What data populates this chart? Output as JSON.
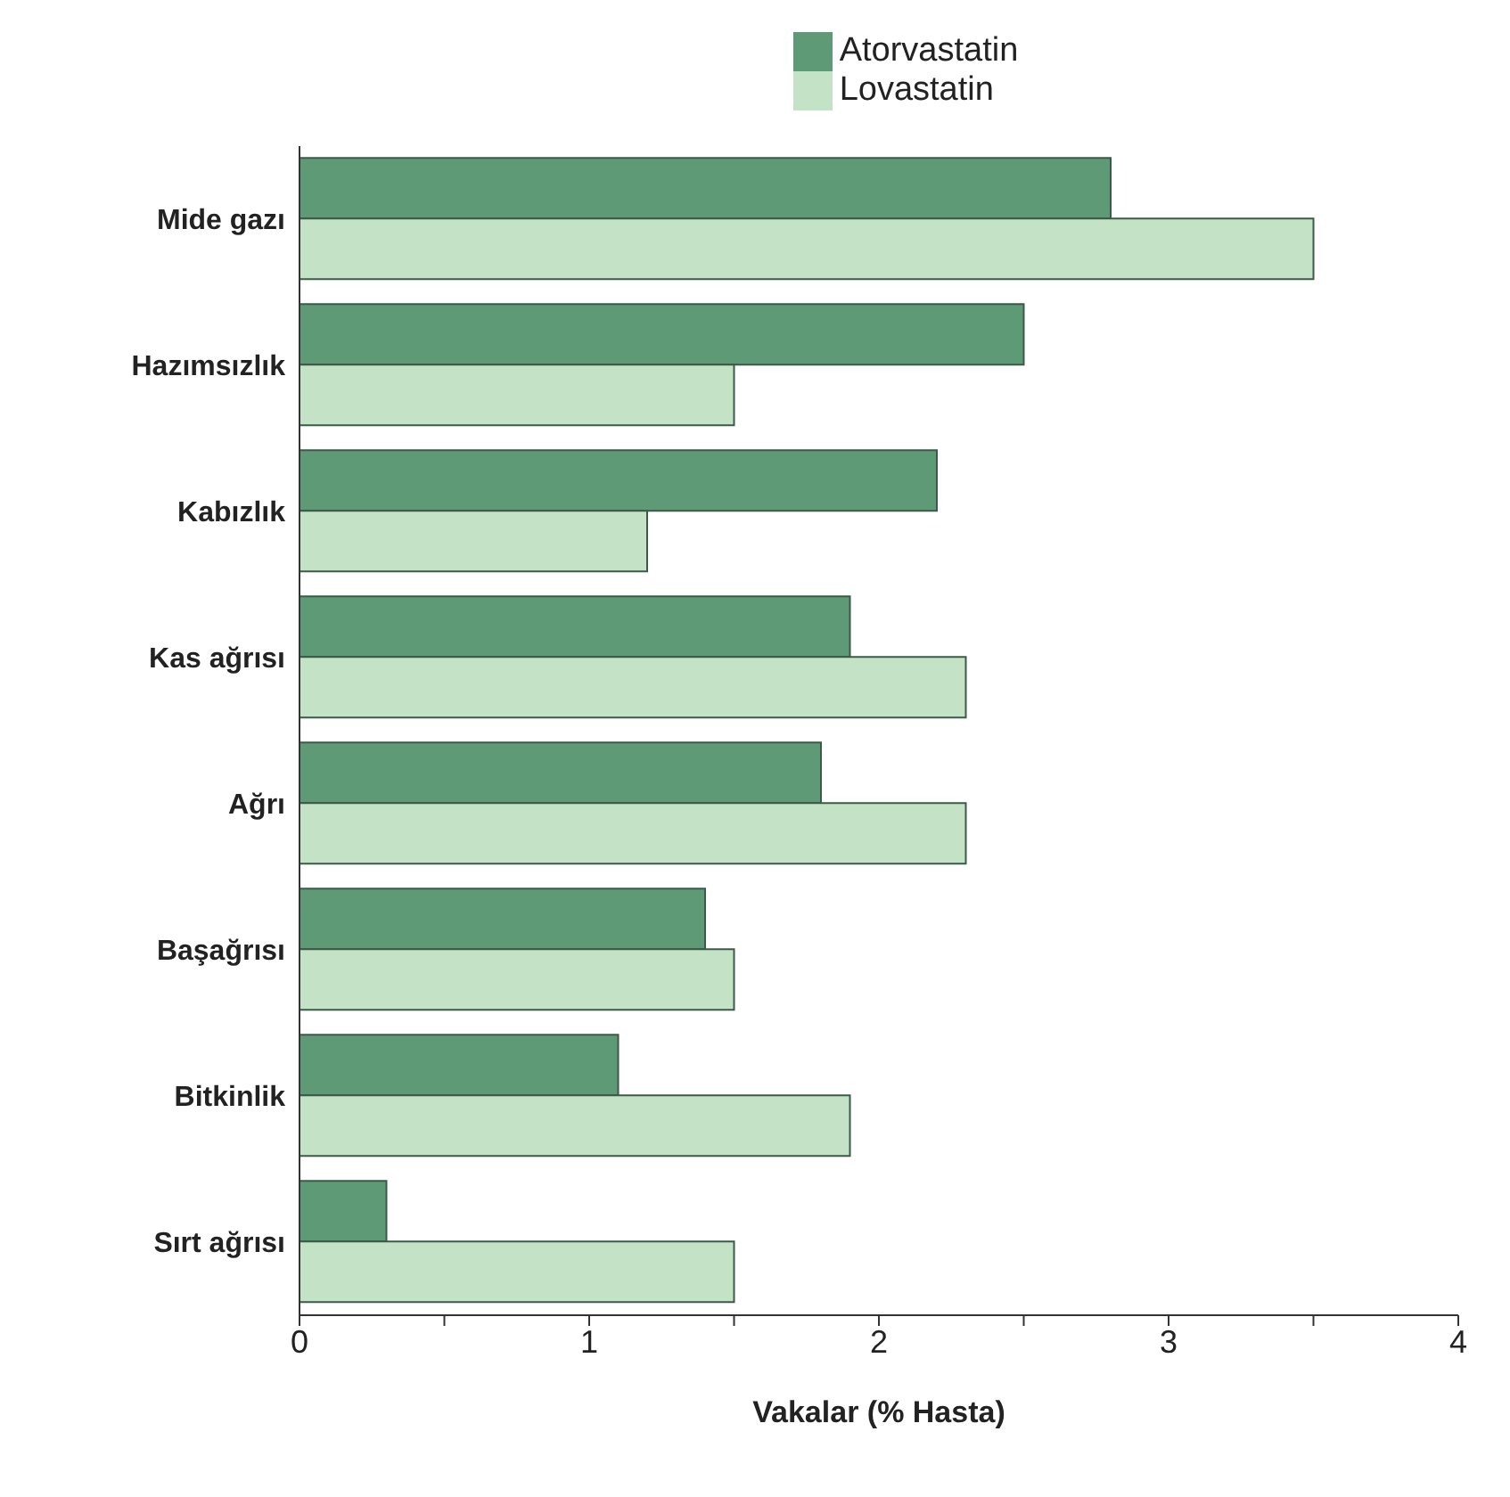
{
  "chart_data": {
    "type": "bar",
    "orientation": "horizontal",
    "xlabel": "Vakalar (% Hasta)",
    "categories": [
      "Mide gazı",
      "Hazımsızlık",
      "Kabızlık",
      "Kas ağrısı",
      "Ağrı",
      "Başağrısı",
      "Bitkinlik",
      "Sırt ağrısı"
    ],
    "series": [
      {
        "name": "Atorvastatin",
        "color": "#5f9a76",
        "values": [
          2.8,
          2.5,
          2.2,
          1.9,
          1.8,
          1.4,
          1.1,
          0.3
        ]
      },
      {
        "name": "Lovastatin",
        "color": "#c4e3c6",
        "values": [
          3.5,
          1.5,
          1.2,
          2.3,
          2.3,
          1.5,
          1.9,
          1.5
        ]
      }
    ],
    "xlim": [
      0,
      4
    ],
    "xticks": [
      0,
      {
        "value": 0.5,
        "label": null
      },
      1,
      {
        "value": 1.5,
        "label": null
      },
      2,
      {
        "value": 2.5,
        "label": null
      },
      3,
      {
        "value": 3.5,
        "label": null
      },
      4
    ],
    "grid": false,
    "legend": "top"
  }
}
